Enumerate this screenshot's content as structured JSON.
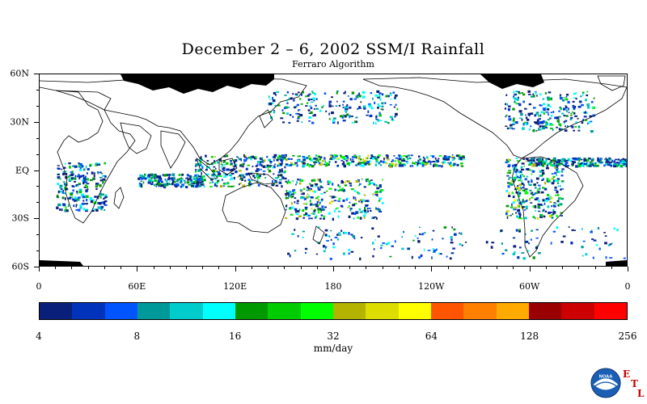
{
  "title": "December 2 – 6, 2002 SSM/I Rainfall",
  "subtitle": "Ferraro Algorithm",
  "map": {
    "lat_labels": [
      "60N",
      "30N",
      "EQ",
      "30S",
      "60S"
    ],
    "lat_values": [
      60,
      30,
      0,
      -30,
      -60
    ],
    "lon_labels": [
      "0",
      "60E",
      "120E",
      "180",
      "120W",
      "60W",
      "0"
    ],
    "lon_values": [
      0,
      60,
      120,
      180,
      240,
      300,
      360
    ],
    "lat_range": [
      -60,
      60
    ],
    "lon_range": [
      0,
      360
    ],
    "no_data_color": "#000000",
    "coastline_color": "#000000"
  },
  "colorbar": {
    "colors": [
      "#0a1f7a",
      "#0033bb",
      "#0055ff",
      "#009999",
      "#00cccc",
      "#00ffff",
      "#009900",
      "#00cc00",
      "#00ff00",
      "#b3b300",
      "#dddd00",
      "#ffff00",
      "#ff5500",
      "#ff7f00",
      "#ffaa00",
      "#990000",
      "#cc0000",
      "#ff0000"
    ],
    "tick_labels": [
      "4",
      "8",
      "16",
      "32",
      "64",
      "128",
      "256"
    ],
    "units": "mm/day"
  },
  "logo": {
    "icon": "noaa-logo-icon",
    "text": "NOAA",
    "letters": [
      "E",
      "T",
      "L"
    ],
    "accent_color": "#cc0000"
  },
  "rain_regions": [
    {
      "name": "ITCZ Pacific north",
      "lat": [
        3,
        10
      ],
      "lon": [
        145,
        260
      ],
      "intensity": 0.85
    },
    {
      "name": "ITCZ Atlantic",
      "lat": [
        3,
        8
      ],
      "lon": [
        300,
        360
      ],
      "intensity": 0.55
    },
    {
      "name": "Indian Ocean equatorial",
      "lat": [
        -10,
        -2
      ],
      "lon": [
        60,
        100
      ],
      "intensity": 0.55
    },
    {
      "name": "Maritime Continent",
      "lat": [
        -10,
        10
      ],
      "lon": [
        95,
        150
      ],
      "intensity": 0.7
    },
    {
      "name": "SPCZ",
      "lat": [
        -30,
        -5
      ],
      "lon": [
        150,
        210
      ],
      "intensity": 0.75
    },
    {
      "name": "South America",
      "lat": [
        -30,
        8
      ],
      "lon": [
        285,
        320
      ],
      "intensity": 0.8
    },
    {
      "name": "Africa",
      "lat": [
        -25,
        5
      ],
      "lon": [
        10,
        40
      ],
      "intensity": 0.6
    },
    {
      "name": "North Atlantic storm track",
      "lat": [
        25,
        50
      ],
      "lon": [
        285,
        340
      ],
      "intensity": 0.6
    },
    {
      "name": "North Pacific storm track",
      "lat": [
        30,
        50
      ],
      "lon": [
        140,
        220
      ],
      "intensity": 0.55
    },
    {
      "name": "Southern ocean",
      "lat": [
        -55,
        -35
      ],
      "lon": [
        150,
        360
      ],
      "intensity": 0.45
    }
  ]
}
